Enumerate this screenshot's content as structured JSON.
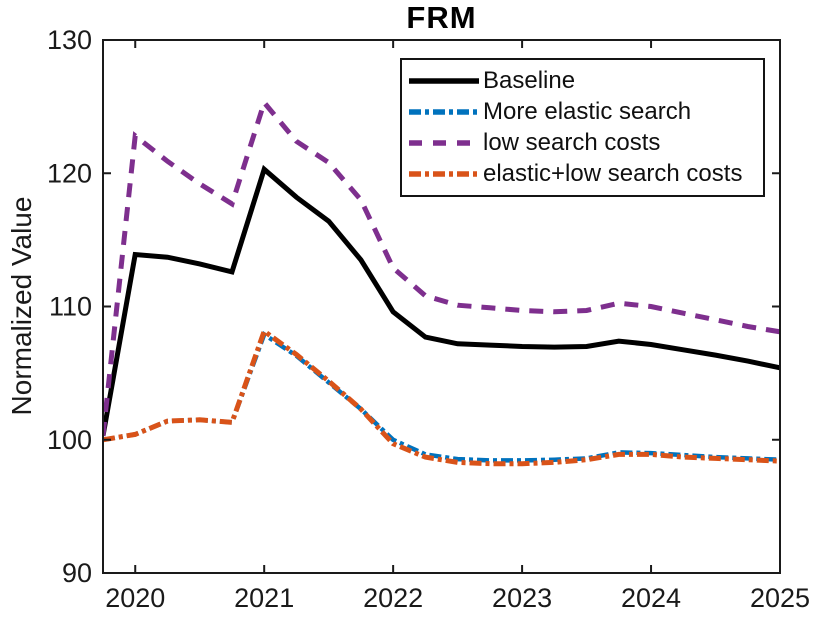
{
  "chart_data": {
    "type": "line",
    "title": "FRM",
    "xlabel": "",
    "ylabel": "Normalized Value",
    "xlim": [
      2019.75,
      2025
    ],
    "ylim": [
      90,
      130
    ],
    "x_ticks": [
      "2020",
      "2021",
      "2022",
      "2023",
      "2024",
      "2025"
    ],
    "x_tick_values": [
      2020,
      2021,
      2022,
      2023,
      2024,
      2025
    ],
    "y_ticks": [
      "90",
      "100",
      "110",
      "120",
      "130"
    ],
    "y_tick_values": [
      90,
      100,
      110,
      120,
      130
    ],
    "grid": false,
    "legend_position": "upper-right-inside",
    "x": [
      2019.75,
      2020,
      2020.25,
      2020.5,
      2020.75,
      2021,
      2021.25,
      2021.5,
      2021.75,
      2022,
      2022.25,
      2022.5,
      2022.75,
      2023,
      2023.25,
      2023.5,
      2023.75,
      2024,
      2024.25,
      2024.5,
      2024.75,
      2025
    ],
    "series": [
      {
        "name": "Baseline",
        "color": "#000000",
        "line_style": "solid",
        "values": [
          100.3,
          113.9,
          113.7,
          113.2,
          112.6,
          120.3,
          118.2,
          116.4,
          113.5,
          109.6,
          107.7,
          107.2,
          107.1,
          107.0,
          106.95,
          107.0,
          107.4,
          107.15,
          106.75,
          106.35,
          105.9,
          105.4
        ]
      },
      {
        "name": "More elastic search",
        "color": "#0072BD",
        "line_style": "dashdot",
        "values": [
          100.0,
          100.4,
          101.4,
          101.5,
          101.3,
          107.9,
          106.3,
          104.3,
          102.3,
          100.0,
          98.9,
          98.55,
          98.45,
          98.45,
          98.5,
          98.6,
          99.05,
          99.0,
          98.85,
          98.7,
          98.6,
          98.5
        ]
      },
      {
        "name": "low search costs",
        "color": "#7E2F8E",
        "line_style": "dashed",
        "values": [
          100.3,
          122.8,
          120.9,
          119.2,
          117.7,
          125.3,
          122.4,
          120.8,
          118.0,
          112.9,
          110.8,
          110.1,
          109.9,
          109.7,
          109.6,
          109.7,
          110.25,
          110.0,
          109.5,
          109.0,
          108.5,
          108.1
        ]
      },
      {
        "name": "elastic+low search costs",
        "color": "#D95319",
        "line_style": "dashdot",
        "values": [
          100.0,
          100.4,
          101.4,
          101.5,
          101.3,
          108.15,
          106.4,
          104.4,
          102.3,
          99.7,
          98.7,
          98.3,
          98.2,
          98.2,
          98.3,
          98.5,
          98.9,
          98.9,
          98.7,
          98.6,
          98.5,
          98.4
        ]
      }
    ]
  }
}
